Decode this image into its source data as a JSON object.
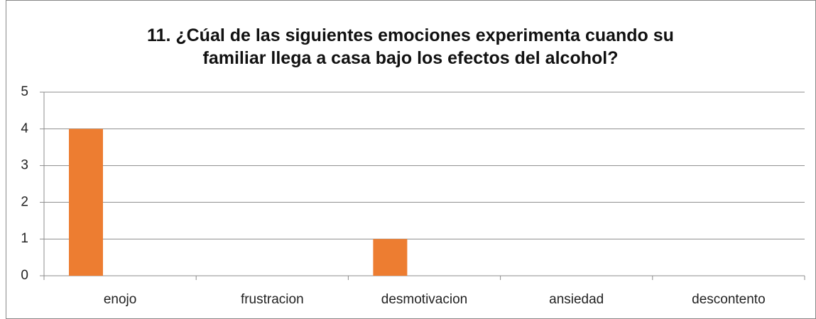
{
  "chart_data": {
    "type": "bar",
    "title": "11. ¿Cúal de las siguientes emociones experimenta cuando su\nfamiliar llega a casa bajo los efectos del alcohol?",
    "categories": [
      "enojo",
      "frustracion",
      "desmotivacion",
      "ansiedad",
      "descontento"
    ],
    "values": [
      4,
      0,
      1,
      0,
      0
    ],
    "color": "#ed7d31",
    "ylim": [
      0,
      5
    ],
    "yticks": [
      0,
      1,
      2,
      3,
      4,
      5
    ],
    "grid": true
  }
}
